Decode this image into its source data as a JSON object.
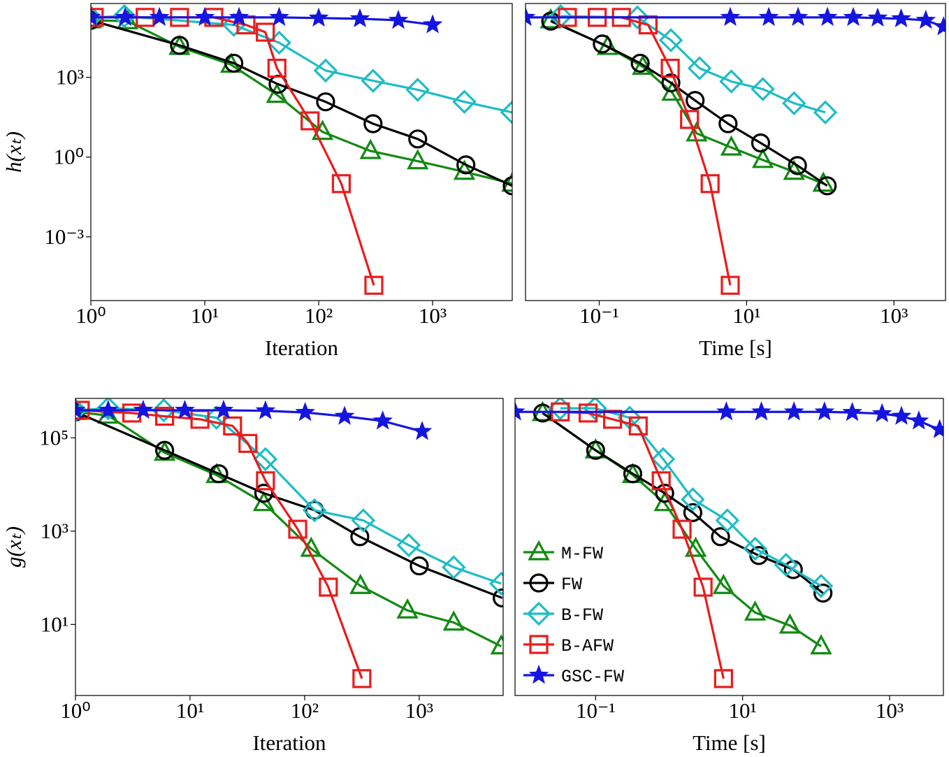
{
  "chart_data": [
    {
      "type": "line",
      "xlabel": "Iteration",
      "ylabel": "h(xₜ)",
      "xscale": "log",
      "yscale": "log",
      "xlim": [
        1,
        5000
      ],
      "ylim": [
        4e-06,
        600000
      ],
      "xticks": [
        {
          "value": 1,
          "label": "10⁰"
        },
        {
          "value": 10,
          "label": "10¹"
        },
        {
          "value": 100,
          "label": "10²"
        },
        {
          "value": 1000,
          "label": "10³"
        }
      ],
      "yticks": [
        {
          "value": 0.001,
          "label": "10⁻³"
        },
        {
          "value": 1,
          "label": "10⁰"
        },
        {
          "value": 1000,
          "label": "10³"
        }
      ],
      "series": [
        {
          "color": "#138a13",
          "marker": "triangle",
          "x": [
            1,
            2.1,
            6,
            17,
            43,
            108,
            285,
            740,
            1900,
            5000
          ],
          "values": [
            140000,
            130000,
            14000,
            3000,
            220,
            8.9,
            1.7,
            0.7,
            0.28,
            0.1
          ]
        },
        {
          "color": "#000000",
          "marker": "circle",
          "x": [
            1,
            6,
            18,
            44,
            115,
            300,
            740,
            1960,
            5000
          ],
          "values": [
            140000,
            16000,
            3400,
            550,
            120,
            18,
            4.8,
            0.51,
            0.083
          ]
        },
        {
          "color": "#1fbcc4",
          "marker": "diamond",
          "x": [
            1,
            1.97,
            18,
            45,
            115,
            300,
            740,
            1900,
            5000
          ],
          "values": [
            180000,
            200000,
            94000,
            20000,
            1800,
            740,
            340,
            120,
            48
          ]
        },
        {
          "color": "#e81c1c",
          "marker": "square",
          "x": [
            1.07,
            3,
            6,
            12,
            23,
            34,
            43,
            84,
            158,
            305
          ],
          "values": [
            180000,
            180000,
            180000,
            180000,
            94000,
            50000,
            2200,
            23,
            0.1,
            1.5e-05
          ]
        },
        {
          "color": "#1515e0",
          "marker": "star",
          "x": [
            1,
            2,
            4,
            10,
            20,
            45,
            100,
            230,
            500,
            1000
          ],
          "values": [
            180000,
            180000,
            180000,
            180000,
            180000,
            180000,
            170000,
            160000,
            140000,
            95000
          ]
        }
      ]
    },
    {
      "type": "line",
      "xlabel": "Time [s]",
      "xscale": "log",
      "yscale": "log",
      "xlim": [
        0.01,
        5000
      ],
      "ylim": [
        4e-06,
        600000
      ],
      "xticks": [
        {
          "value": 0.1,
          "label": "10⁻¹"
        },
        {
          "value": 10,
          "label": "10¹"
        },
        {
          "value": 1000,
          "label": "10³"
        }
      ],
      "series": [
        {
          "color": "#138a13",
          "marker": "triangle",
          "x": [
            0.022,
            0.13,
            0.39,
            0.98,
            2.1,
            6.2,
            16.6,
            44,
            110
          ],
          "values": [
            140000,
            14000,
            2500,
            265,
            7.8,
            2.3,
            0.78,
            0.28,
            0.1
          ]
        },
        {
          "color": "#000000",
          "marker": "circle",
          "x": [
            0.022,
            0.11,
            0.36,
            0.94,
            2,
            5.6,
            15.5,
            49,
            124
          ],
          "values": [
            130000,
            18000,
            3400,
            620,
            135,
            18,
            3.4,
            0.48,
            0.083
          ]
        },
        {
          "color": "#1fbcc4",
          "marker": "diamond",
          "x": [
            0.03,
            0.33,
            0.94,
            2.3,
            6.2,
            16.6,
            44,
            117
          ],
          "values": [
            200000,
            180000,
            25000,
            2200,
            700,
            360,
            106,
            48
          ]
        },
        {
          "color": "#e81c1c",
          "marker": "square",
          "x": [
            0.037,
            0.094,
            0.2,
            0.46,
            0.92,
            1.68,
            3.2,
            6
          ],
          "values": [
            180000,
            180000,
            180000,
            94000,
            2200,
            26,
            0.1,
            1.5e-05
          ]
        },
        {
          "color": "#1515e0",
          "marker": "star",
          "x": [
            0.01,
            6,
            20,
            50,
            125,
            280,
            600,
            1250,
            2700,
            4700
          ],
          "values": [
            180000,
            180000,
            180000,
            180000,
            180000,
            180000,
            170000,
            160000,
            140000,
            80000
          ]
        }
      ]
    },
    {
      "type": "line",
      "xlabel": "Iteration",
      "ylabel": "g(xₜ)",
      "xscale": "log",
      "yscale": "log",
      "xlim": [
        1,
        5400
      ],
      "ylim": [
        0.3,
        700000
      ],
      "xticks": [
        {
          "value": 1,
          "label": "10⁰"
        },
        {
          "value": 10,
          "label": "10¹"
        },
        {
          "value": 100,
          "label": "10²"
        },
        {
          "value": 1000,
          "label": "10³"
        }
      ],
      "yticks": [
        {
          "value": 10,
          "label": "10¹"
        },
        {
          "value": 1000,
          "label": "10³"
        },
        {
          "value": 100000,
          "label": "10⁵"
        }
      ],
      "series": [
        {
          "color": "#138a13",
          "marker": "triangle",
          "x": [
            1,
            1.93,
            6,
            17,
            44,
            114,
            307,
            790,
            2000,
            5200
          ],
          "values": [
            360000,
            300000,
            48000,
            16000,
            4000,
            420,
            67,
            20,
            11,
            3.4
          ]
        },
        {
          "color": "#000000",
          "marker": "circle",
          "x": [
            1,
            6,
            17.8,
            44,
            122,
            303,
            1000,
            5300
          ],
          "values": [
            360000,
            54000,
            17000,
            6500,
            2800,
            760,
            180,
            37
          ]
        },
        {
          "color": "#1fbcc4",
          "marker": "diamond",
          "x": [
            1,
            1.93,
            5.9,
            17,
            45.5,
            122,
            325,
            810,
            2000,
            5200
          ],
          "values": [
            390000,
            430000,
            390000,
            270000,
            35000,
            2800,
            1700,
            500,
            168,
            75
          ]
        },
        {
          "color": "#e81c1c",
          "marker": "square",
          "x": [
            1.1,
            3.1,
            6,
            12.2,
            23.5,
            32,
            45.5,
            87,
            161,
            316
          ],
          "values": [
            390000,
            340000,
            290000,
            250000,
            180000,
            76000,
            12000,
            1100,
            63,
            0.69
          ]
        },
        {
          "color": "#1515e0",
          "marker": "star",
          "x": [
            1,
            1.93,
            3.9,
            9,
            19.6,
            45.5,
            101,
            223,
            480,
            1060
          ],
          "values": [
            390000,
            390000,
            390000,
            390000,
            390000,
            380000,
            350000,
            290000,
            230000,
            137000
          ]
        }
      ]
    },
    {
      "type": "line",
      "xlabel": "Time [s]",
      "xscale": "log",
      "yscale": "log",
      "xlim": [
        0.008,
        5400
      ],
      "ylim": [
        0.3,
        700000
      ],
      "legend": "lower left",
      "xticks": [
        {
          "value": 0.1,
          "label": "10⁻¹"
        },
        {
          "value": 10,
          "label": "10¹"
        },
        {
          "value": 1000,
          "label": "10³"
        }
      ],
      "series": [
        {
          "name": "M-FW",
          "color": "#138a13",
          "marker": "triangle",
          "x": [
            0.019,
            0.1,
            0.32,
            0.87,
            2.3,
            5.5,
            14.8,
            44,
            117
          ],
          "values": [
            340000,
            54000,
            16000,
            4000,
            420,
            67,
            18,
            9.5,
            3.4
          ]
        },
        {
          "name": "FW",
          "color": "#000000",
          "marker": "circle",
          "x": [
            0.019,
            0.1,
            0.32,
            0.87,
            2.1,
            5,
            16.6,
            49,
            124
          ],
          "values": [
            340000,
            54000,
            17000,
            6500,
            2500,
            760,
            300,
            150,
            47
          ]
        },
        {
          "name": "B-FW",
          "color": "#1fbcc4",
          "marker": "diamond",
          "x": [
            0.033,
            0.098,
            0.29,
            0.83,
            2.1,
            6.2,
            14.8,
            39,
            117
          ],
          "values": [
            430000,
            430000,
            270000,
            35000,
            4800,
            1700,
            420,
            190,
            67
          ]
        },
        {
          "name": "B-AFW",
          "color": "#e81c1c",
          "marker": "square",
          "x": [
            0.033,
            0.079,
            0.17,
            0.38,
            0.78,
            1.5,
            2.9,
            5.5
          ],
          "values": [
            360000,
            340000,
            250000,
            180000,
            12000,
            1100,
            63,
            0.69
          ]
        },
        {
          "name": "GSC-FW",
          "color": "#1515e0",
          "marker": "star",
          "x": [
            0.008,
            6,
            18,
            50,
            130,
            310,
            790,
            1450,
            2500,
            4800
          ],
          "values": [
            360000,
            360000,
            360000,
            360000,
            360000,
            350000,
            330000,
            290000,
            230000,
            150000
          ]
        }
      ]
    }
  ]
}
